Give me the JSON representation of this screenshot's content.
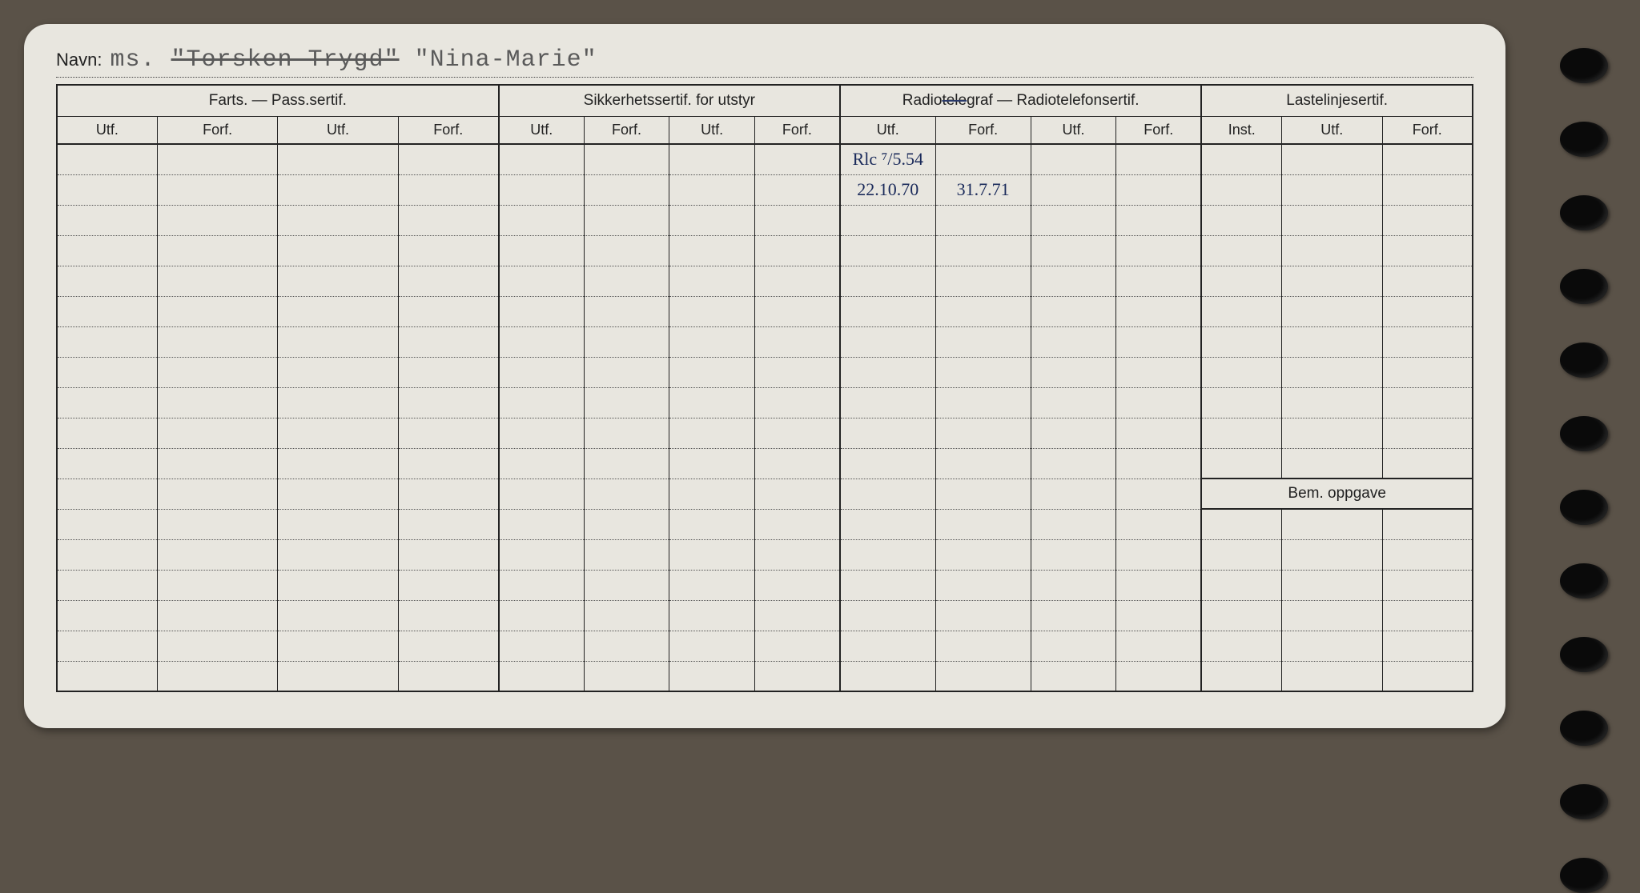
{
  "background_color": "#5a5248",
  "card_color": "#e8e6df",
  "ink_color": "#222222",
  "pen_color": "#1a2a5a",
  "typewriter_color": "#5a5a5a",
  "navn": {
    "label": "Navn:",
    "prefix": "ms.",
    "struck_name": "\"Torsken-Trygd\"",
    "name": "\"Nina-Marie\""
  },
  "sections": [
    {
      "title": "Farts. — Pass.sertif.",
      "cols": [
        "Utf.",
        "Forf.",
        "Utf.",
        "Forf."
      ],
      "widths": [
        100,
        120,
        120,
        100
      ]
    },
    {
      "title": "Sikkerhetssertif. for utstyr",
      "cols": [
        "Utf.",
        "Forf.",
        "Utf.",
        "Forf."
      ],
      "widths": [
        85,
        85,
        85,
        85
      ]
    },
    {
      "title": "Radiotelegraf — Radiotelefonsertif.",
      "title_struck_part": "tele",
      "cols": [
        "Utf.",
        "Forf.",
        "Utf.",
        "Forf."
      ],
      "widths": [
        95,
        95,
        85,
        85
      ]
    },
    {
      "title": "Lastelinjesertif.",
      "cols": [
        "Inst.",
        "Utf.",
        "Forf."
      ],
      "widths": [
        80,
        100,
        90
      ]
    }
  ],
  "body_rows": 18,
  "entries": {
    "0": {
      "8": "Rlc ⁷/5.54"
    },
    "1": {
      "8": "22.10.70",
      "9": "31.7.71"
    }
  },
  "bem_label": "Bem. oppgave",
  "bem_start_row": 11,
  "hole_count": 12
}
